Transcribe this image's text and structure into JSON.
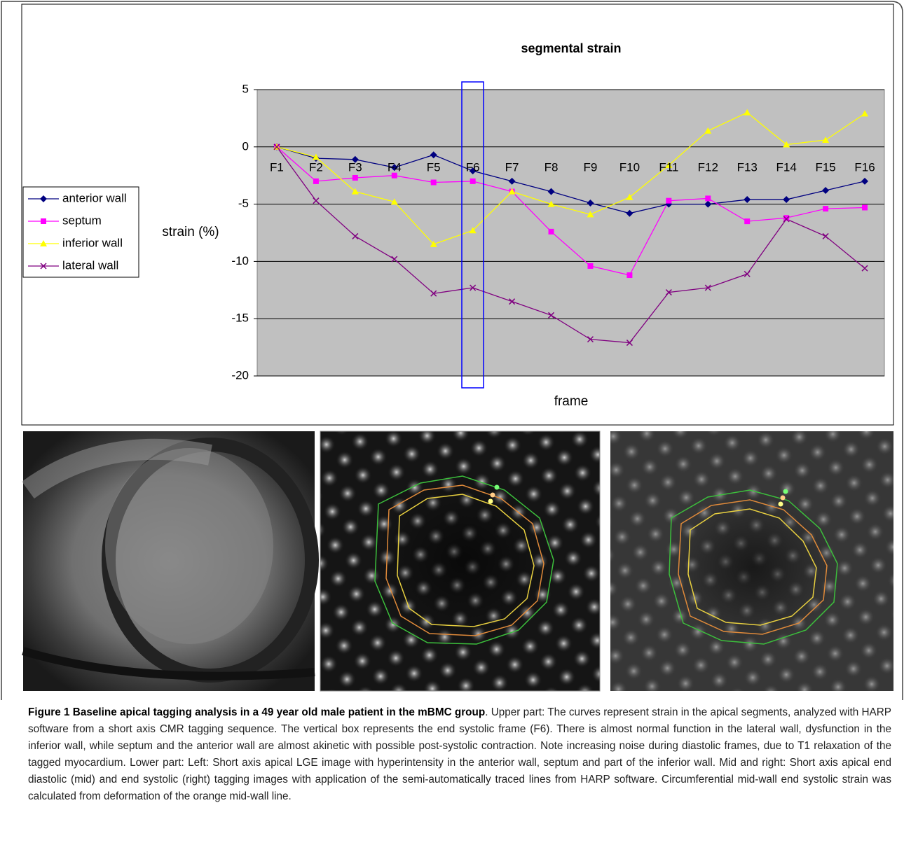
{
  "chart_data": {
    "type": "line",
    "title": "segmental strain",
    "x_label": "frame",
    "y_label": "strain (%)",
    "categories": [
      "F1",
      "F2",
      "F3",
      "F4",
      "F5",
      "F6",
      "F7",
      "F8",
      "F9",
      "F10",
      "F11",
      "F12",
      "F13",
      "F14",
      "F15",
      "F16"
    ],
    "series": [
      {
        "name": "anterior wall",
        "color": "#000080",
        "marker": "diamond",
        "values": [
          0,
          -1.0,
          -1.1,
          -1.8,
          -0.7,
          -2.1,
          -3.0,
          -3.9,
          -4.9,
          -5.8,
          -5.0,
          -5.0,
          -4.6,
          -4.6,
          -3.8,
          -3.0
        ]
      },
      {
        "name": "septum",
        "color": "#ff00ff",
        "marker": "square",
        "values": [
          0,
          -3.0,
          -2.7,
          -2.5,
          -3.1,
          -3.0,
          -3.9,
          -7.4,
          -10.4,
          -11.2,
          -4.7,
          -4.5,
          -6.5,
          -6.2,
          -5.4,
          -5.3
        ]
      },
      {
        "name": "inferior wall",
        "color": "#ffff00",
        "marker": "triangle",
        "values": [
          0,
          -0.9,
          -3.9,
          -4.8,
          -8.5,
          -7.3,
          -3.9,
          -5.0,
          -5.9,
          -4.4,
          -1.6,
          1.4,
          3.0,
          0.2,
          0.6,
          2.9
        ]
      },
      {
        "name": "lateral wall",
        "color": "#800080",
        "marker": "x",
        "values": [
          0,
          -4.7,
          -7.8,
          -9.8,
          -12.8,
          -12.3,
          -13.5,
          -14.7,
          -16.8,
          -17.1,
          -12.7,
          -12.3,
          -11.1,
          -6.3,
          -7.8,
          -10.6
        ]
      }
    ],
    "ylim": [
      -20,
      5
    ],
    "yticks": [
      5,
      0,
      -5,
      -10,
      -15,
      -20
    ],
    "grid": true,
    "legend": "left"
  },
  "caption": {
    "title": "Figure 1 Baseline apical tagging analysis in a 49 year old male patient in the mBMC group",
    "text": ". Upper part: The curves represent strain in the apical segments, analyzed with HARP software from a short axis CMR tagging sequence. The vertical box represents the end systolic frame (F6). There is almost normal function in the lateral wall, dysfunction in the inferior wall, while septum and the anterior wall are almost akinetic with possible post-systolic contraction. Note increasing noise during diastolic frames, due to T1 relaxation of the tagged myocardium. Lower part: Left: Short axis apical LGE image with hyperintensity in the anterior wall, septum and part of the inferior wall. Mid and right: Short axis apical end diastolic (mid) and end systolic (right) tagging images with application of the semi-automatically traced lines from HARP software. Circumferential mid-wall end systolic strain was calculated from deformation of the orange mid-wall line."
  }
}
